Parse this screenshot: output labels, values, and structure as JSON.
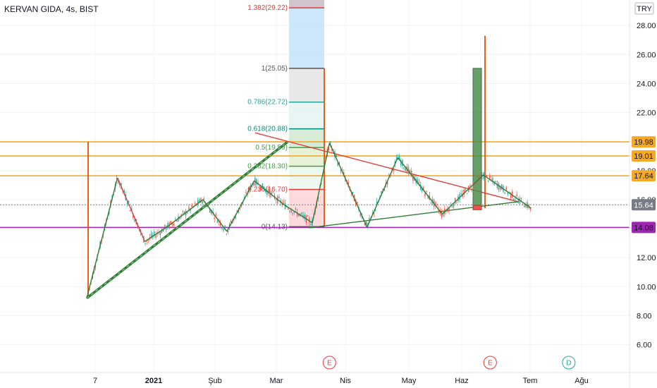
{
  "chart_title": "KERVAN GIDA, 4s, BIST",
  "currency": "TRY",
  "chart_data": {
    "type": "line",
    "title": "KERVAN GIDA, 4s, BIST",
    "currency": "TRY",
    "ylim": [
      4.5,
      30
    ],
    "y_ticks": [
      "6.00",
      "8.00",
      "10.00",
      "12.00",
      "14.00",
      "16.00",
      "18.00",
      "20.00",
      "22.00",
      "24.00",
      "26.00",
      "28.00"
    ],
    "x_ticks": [
      {
        "label": "7",
        "bold": false
      },
      {
        "label": "2021",
        "bold": true
      },
      {
        "label": "Şub",
        "bold": false
      },
      {
        "label": "Mar",
        "bold": false
      },
      {
        "label": "Nis",
        "bold": false
      },
      {
        "label": "May",
        "bold": false
      },
      {
        "label": "Haz",
        "bold": false
      },
      {
        "label": "Tem",
        "bold": false
      },
      {
        "label": "Ağu",
        "bold": false
      }
    ],
    "price_labels": [
      {
        "label": "19.98",
        "value": 19.98,
        "color": "#f9a825"
      },
      {
        "label": "19.01",
        "value": 19.01,
        "color": "#f9a825"
      },
      {
        "label": "17.64",
        "value": 17.64,
        "color": "#f9a825"
      },
      {
        "label": "15.64",
        "value": 15.64,
        "color": "#787b86"
      },
      {
        "label": "14.08",
        "value": 14.08,
        "color": "#9c27b0"
      }
    ],
    "last_price": 15.64,
    "fib_levels": [
      {
        "label": "1.382(29.22)",
        "value": 29.22,
        "color": "#e53935"
      },
      {
        "label": "1(25.05)",
        "value": 25.05,
        "color": "#555555"
      },
      {
        "label": "0.786(22.72)",
        "value": 22.72,
        "color": "#26a69a"
      },
      {
        "label": "0.618(20.88)",
        "value": 20.88,
        "color": "#00897b"
      },
      {
        "label": "0.5(19.59)",
        "value": 19.59,
        "color": "#43a047"
      },
      {
        "label": "0.382(18.30)",
        "value": 18.3,
        "color": "#43a047"
      },
      {
        "label": "0.236(16.70)",
        "value": 16.7,
        "color": "#e53935"
      },
      {
        "label": "0(14.13)",
        "value": 14.13,
        "color": "#555555"
      }
    ],
    "zigzag": [
      [
        0.0,
        9.2
      ],
      [
        4.5,
        17.5
      ],
      [
        8.5,
        13.1
      ],
      [
        12.0,
        14.2
      ],
      [
        17.0,
        16.0
      ],
      [
        20.5,
        13.8
      ],
      [
        24.5,
        17.3
      ],
      [
        29.0,
        15.6
      ],
      [
        33.0,
        14.4
      ],
      [
        35.5,
        19.9
      ],
      [
        41.0,
        14.1
      ],
      [
        45.5,
        18.9
      ],
      [
        52.0,
        15.0
      ],
      [
        58.0,
        17.7
      ],
      [
        65.0,
        15.4
      ]
    ],
    "markers": [
      {
        "label": "E",
        "x": 35.5,
        "color": "#e53935"
      },
      {
        "label": "E",
        "x": 59.0,
        "color": "#e53935"
      },
      {
        "label": "D",
        "x": 70.5,
        "color": "#26a69a"
      }
    ]
  }
}
